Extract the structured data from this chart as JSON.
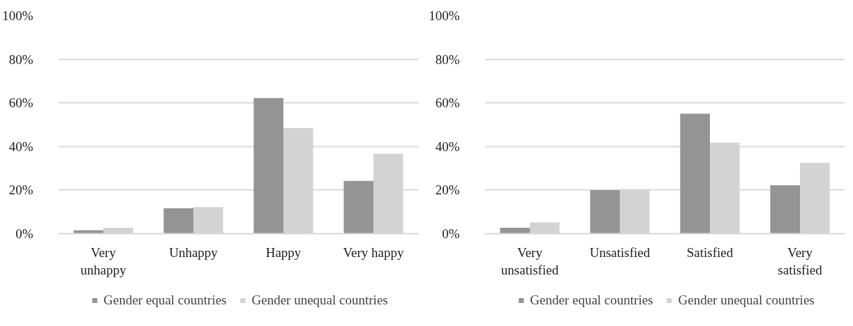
{
  "chart_data": [
    {
      "type": "bar",
      "categories": [
        "Very unhappy",
        "Unhappy",
        "Happy",
        "Very happy"
      ],
      "series": [
        {
          "name": "Gender equal countries",
          "color": "#949494",
          "values": [
            1.6,
            11.7,
            62.2,
            24.2
          ]
        },
        {
          "name": "Gender unequal countries",
          "color": "#d3d3d3",
          "values": [
            2.7,
            12.2,
            48.4,
            36.7
          ]
        }
      ],
      "ylim": [
        0,
        100
      ],
      "yticks": [
        {
          "value": 0,
          "label": "0%"
        },
        {
          "value": 20,
          "label": "20%"
        },
        {
          "value": 40,
          "label": "40%"
        },
        {
          "value": 60,
          "label": "60%"
        },
        {
          "value": 80,
          "label": "80%"
        },
        {
          "value": 100,
          "label": "100%"
        }
      ],
      "grid": "y",
      "legend": "bottom"
    },
    {
      "type": "bar",
      "categories": [
        "Very unsatisfied",
        "Unsatisfied",
        "Satisfied",
        "Very satisfied"
      ],
      "series": [
        {
          "name": "Gender equal countries",
          "color": "#949494",
          "values": [
            2.7,
            20.0,
            55.0,
            22.2
          ]
        },
        {
          "name": "Gender unequal countries",
          "color": "#d3d3d3",
          "values": [
            5.2,
            20.3,
            41.8,
            32.5
          ]
        }
      ],
      "ylim": [
        0,
        100
      ],
      "yticks": [
        {
          "value": 0,
          "label": "0%"
        },
        {
          "value": 20,
          "label": "20%"
        },
        {
          "value": 40,
          "label": "40%"
        },
        {
          "value": 60,
          "label": "60%"
        },
        {
          "value": 80,
          "label": "80%"
        },
        {
          "value": 100,
          "label": "100%"
        }
      ],
      "grid": "y",
      "legend": "bottom"
    }
  ]
}
